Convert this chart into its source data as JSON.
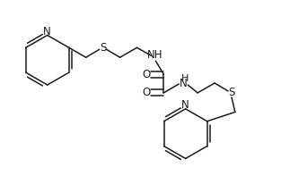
{
  "bg_color": "#ffffff",
  "line_color": "#1a1a1a",
  "lw": 1.1,
  "figsize": [
    3.13,
    1.97
  ],
  "dpi": 100,
  "xlim": [
    0,
    313
  ],
  "ylim": [
    0,
    197
  ]
}
